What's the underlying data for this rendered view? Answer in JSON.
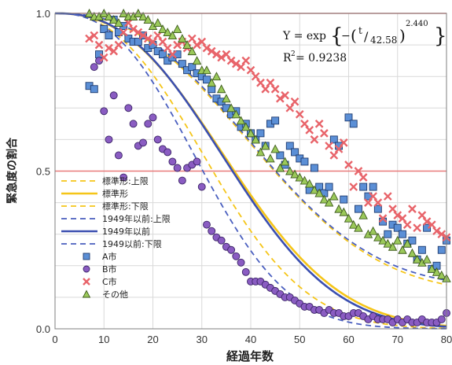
{
  "chart_data": {
    "type": "scatter",
    "xlabel": "経過年数",
    "ylabel": "緊急度の割合",
    "xlim": [
      0,
      80
    ],
    "ylim": [
      0,
      1.0
    ],
    "x_ticks": [
      "0",
      "10",
      "20",
      "30",
      "40",
      "50",
      "60",
      "70",
      "80"
    ],
    "y_ticks": [
      "0.0",
      "0.5",
      "1.0"
    ],
    "grid": true,
    "legend_position": "left-middle",
    "reference_lines": [
      {
        "y": 1.0,
        "color": "#e87a7a"
      },
      {
        "y": 0.5,
        "color": "#e87a7a"
      }
    ],
    "annotation": {
      "formula_prefix": "Y = exp",
      "formula_neg": "−",
      "formula_t": "t",
      "formula_div": "42.58",
      "formula_exp": "2.440",
      "r2_label": "R",
      "r2_sup": "2",
      "r2_value": " = 0.9238"
    },
    "curves": [
      {
        "name": "標準形:上限",
        "eta": 48.5,
        "m": 2.44,
        "tail": 0.11,
        "color": "#f5c518",
        "dash": true,
        "width": 1.8
      },
      {
        "name": "標準形",
        "eta": 42.58,
        "m": 2.44,
        "tail": 0.0,
        "color": "#f5c518",
        "dash": false,
        "width": 2.6
      },
      {
        "name": "標準形:下限",
        "eta": 37.5,
        "m": 2.44,
        "tail": 0.0,
        "color": "#f5c518",
        "dash": true,
        "width": 1.8
      },
      {
        "name": "1949年以前:上限",
        "eta": 48.0,
        "m": 2.5,
        "tail": 0.13,
        "color": "#4a5fbf",
        "dash": true,
        "width": 1.8
      },
      {
        "name": "1949年以前",
        "eta": 42.0,
        "m": 2.5,
        "tail": 0.0,
        "color": "#3b4fb0",
        "dash": false,
        "width": 2.6
      },
      {
        "name": "1949以前:下限",
        "eta": 35.0,
        "m": 2.5,
        "tail": 0.0,
        "color": "#4a5fbf",
        "dash": true,
        "width": 1.8
      }
    ],
    "series": [
      {
        "name": "A市",
        "marker": "square",
        "color": "#5b8fd6",
        "points": [
          [
            7,
            0.77
          ],
          [
            8,
            0.76
          ],
          [
            9,
            0.87
          ],
          [
            10,
            0.95
          ],
          [
            11,
            0.93
          ],
          [
            12,
            0.98
          ],
          [
            13,
            0.94
          ],
          [
            14,
            0.96
          ],
          [
            15,
            0.92
          ],
          [
            16,
            0.91
          ],
          [
            17,
            0.91
          ],
          [
            18,
            0.93
          ],
          [
            19,
            0.89
          ],
          [
            20,
            0.9
          ],
          [
            21,
            0.88
          ],
          [
            22,
            0.87
          ],
          [
            23,
            0.85
          ],
          [
            24,
            0.86
          ],
          [
            25,
            0.87
          ],
          [
            26,
            0.84
          ],
          [
            27,
            0.82
          ],
          [
            28,
            0.83
          ],
          [
            29,
            0.81
          ],
          [
            30,
            0.8
          ],
          [
            31,
            0.79
          ],
          [
            32,
            0.76
          ],
          [
            33,
            0.73
          ],
          [
            34,
            0.72
          ],
          [
            35,
            0.7
          ],
          [
            36,
            0.68
          ],
          [
            37,
            0.69
          ],
          [
            38,
            0.64
          ],
          [
            39,
            0.65
          ],
          [
            40,
            0.62
          ],
          [
            41,
            0.6
          ],
          [
            42,
            0.62
          ],
          [
            43,
            0.58
          ],
          [
            44,
            0.65
          ],
          [
            45,
            0.66
          ],
          [
            46,
            0.55
          ],
          [
            47,
            0.52
          ],
          [
            48,
            0.58
          ],
          [
            49,
            0.56
          ],
          [
            50,
            0.54
          ],
          [
            51,
            0.53
          ],
          [
            52,
            0.44
          ],
          [
            53,
            0.51
          ],
          [
            54,
            0.45
          ],
          [
            55,
            0.43
          ],
          [
            56,
            0.45
          ],
          [
            57,
            0.6
          ],
          [
            58,
            0.58
          ],
          [
            59,
            0.41
          ],
          [
            60,
            0.67
          ],
          [
            61,
            0.65
          ],
          [
            62,
            0.38
          ],
          [
            63,
            0.45
          ],
          [
            64,
            0.42
          ],
          [
            65,
            0.45
          ],
          [
            66,
            0.38
          ],
          [
            67,
            0.34
          ],
          [
            68,
            0.3
          ],
          [
            69,
            0.33
          ],
          [
            70,
            0.32
          ],
          [
            71,
            0.3
          ],
          [
            72,
            0.27
          ],
          [
            73,
            0.28
          ],
          [
            74,
            0.22
          ],
          [
            75,
            0.25
          ],
          [
            76,
            0.32
          ],
          [
            77,
            0.19
          ],
          [
            78,
            0.2
          ],
          [
            79,
            0.25
          ],
          [
            80,
            0.28
          ]
        ]
      },
      {
        "name": "B市",
        "marker": "circle",
        "color": "#8a5cc2",
        "points": [
          [
            8,
            0.83
          ],
          [
            9,
            0.85
          ],
          [
            10,
            0.69
          ],
          [
            11,
            0.6
          ],
          [
            12,
            0.74
          ],
          [
            13,
            0.55
          ],
          [
            14,
            0.48
          ],
          [
            15,
            0.7
          ],
          [
            16,
            0.65
          ],
          [
            17,
            0.58
          ],
          [
            18,
            0.59
          ],
          [
            19,
            0.65
          ],
          [
            20,
            0.67
          ],
          [
            21,
            0.6
          ],
          [
            22,
            0.57
          ],
          [
            23,
            0.56
          ],
          [
            24,
            0.53
          ],
          [
            25,
            0.51
          ],
          [
            26,
            0.47
          ],
          [
            27,
            0.51
          ],
          [
            28,
            0.52
          ],
          [
            29,
            0.53
          ],
          [
            30,
            0.45
          ],
          [
            31,
            0.33
          ],
          [
            32,
            0.31
          ],
          [
            33,
            0.29
          ],
          [
            34,
            0.28
          ],
          [
            35,
            0.26
          ],
          [
            36,
            0.25
          ],
          [
            37,
            0.23
          ],
          [
            38,
            0.21
          ],
          [
            39,
            0.18
          ],
          [
            40,
            0.15
          ],
          [
            41,
            0.15
          ],
          [
            42,
            0.15
          ],
          [
            43,
            0.14
          ],
          [
            44,
            0.13
          ],
          [
            45,
            0.12
          ],
          [
            46,
            0.11
          ],
          [
            47,
            0.1
          ],
          [
            48,
            0.1
          ],
          [
            49,
            0.09
          ],
          [
            50,
            0.08
          ],
          [
            51,
            0.07
          ],
          [
            52,
            0.07
          ],
          [
            53,
            0.06
          ],
          [
            54,
            0.06
          ],
          [
            55,
            0.05
          ],
          [
            56,
            0.06
          ],
          [
            57,
            0.05
          ],
          [
            58,
            0.05
          ],
          [
            59,
            0.04
          ],
          [
            60,
            0.04
          ],
          [
            61,
            0.05
          ],
          [
            62,
            0.05
          ],
          [
            63,
            0.04
          ],
          [
            64,
            0.03
          ],
          [
            65,
            0.04
          ],
          [
            66,
            0.03
          ],
          [
            67,
            0.03
          ],
          [
            68,
            0.03
          ],
          [
            69,
            0.02
          ],
          [
            70,
            0.03
          ],
          [
            71,
            0.02
          ],
          [
            72,
            0.03
          ],
          [
            73,
            0.02
          ],
          [
            74,
            0.02
          ],
          [
            75,
            0.03
          ],
          [
            76,
            0.02
          ],
          [
            77,
            0.02
          ],
          [
            78,
            0.02
          ],
          [
            79,
            0.03
          ],
          [
            80,
            0.05
          ]
        ]
      },
      {
        "name": "C市",
        "marker": "x",
        "color": "#e8646a",
        "points": [
          [
            7,
            0.92
          ],
          [
            8,
            0.93
          ],
          [
            9,
            0.9
          ],
          [
            10,
            0.86
          ],
          [
            11,
            0.89
          ],
          [
            12,
            0.88
          ],
          [
            13,
            0.9
          ],
          [
            14,
            0.94
          ],
          [
            15,
            0.97
          ],
          [
            16,
            0.95
          ],
          [
            17,
            0.94
          ],
          [
            18,
            0.93
          ],
          [
            19,
            0.92
          ],
          [
            20,
            0.91
          ],
          [
            21,
            0.93
          ],
          [
            22,
            0.91
          ],
          [
            23,
            0.89
          ],
          [
            24,
            0.87
          ],
          [
            25,
            0.9
          ],
          [
            26,
            0.91
          ],
          [
            27,
            0.89
          ],
          [
            28,
            0.92
          ],
          [
            29,
            0.9
          ],
          [
            30,
            0.91
          ],
          [
            31,
            0.89
          ],
          [
            32,
            0.88
          ],
          [
            33,
            0.87
          ],
          [
            34,
            0.86
          ],
          [
            35,
            0.87
          ],
          [
            36,
            0.85
          ],
          [
            37,
            0.84
          ],
          [
            38,
            0.83
          ],
          [
            39,
            0.85
          ],
          [
            40,
            0.82
          ],
          [
            41,
            0.8
          ],
          [
            42,
            0.78
          ],
          [
            43,
            0.76
          ],
          [
            44,
            0.78
          ],
          [
            45,
            0.76
          ],
          [
            46,
            0.73
          ],
          [
            47,
            0.74
          ],
          [
            48,
            0.7
          ],
          [
            49,
            0.72
          ],
          [
            50,
            0.68
          ],
          [
            51,
            0.65
          ],
          [
            52,
            0.63
          ],
          [
            53,
            0.6
          ],
          [
            54,
            0.65
          ],
          [
            55,
            0.62
          ],
          [
            56,
            0.58
          ],
          [
            57,
            0.55
          ],
          [
            58,
            0.57
          ],
          [
            59,
            0.59
          ],
          [
            60,
            0.52
          ],
          [
            61,
            0.45
          ],
          [
            62,
            0.5
          ],
          [
            63,
            0.48
          ],
          [
            64,
            0.4
          ],
          [
            65,
            0.42
          ],
          [
            66,
            0.4
          ],
          [
            67,
            0.35
          ],
          [
            68,
            0.42
          ],
          [
            69,
            0.38
          ],
          [
            70,
            0.36
          ],
          [
            71,
            0.35
          ],
          [
            72,
            0.33
          ],
          [
            73,
            0.38
          ],
          [
            74,
            0.32
          ],
          [
            75,
            0.36
          ],
          [
            76,
            0.34
          ],
          [
            77,
            0.33
          ],
          [
            78,
            0.31
          ],
          [
            79,
            0.3
          ],
          [
            80,
            0.29
          ]
        ]
      },
      {
        "name": "その他",
        "marker": "triangle",
        "color": "#9bc95a",
        "points": [
          [
            7,
            1.0
          ],
          [
            8,
            0.99
          ],
          [
            9,
            0.99
          ],
          [
            10,
            1.0
          ],
          [
            11,
            0.99
          ],
          [
            12,
            0.98
          ],
          [
            13,
            0.97
          ],
          [
            14,
            1.0
          ],
          [
            15,
            0.99
          ],
          [
            16,
            0.99
          ],
          [
            17,
            1.0
          ],
          [
            18,
            0.99
          ],
          [
            19,
            0.98
          ],
          [
            20,
            0.96
          ],
          [
            21,
            0.97
          ],
          [
            22,
            0.95
          ],
          [
            23,
            0.94
          ],
          [
            24,
            0.93
          ],
          [
            25,
            0.95
          ],
          [
            26,
            0.92
          ],
          [
            27,
            0.9
          ],
          [
            28,
            0.88
          ],
          [
            29,
            0.85
          ],
          [
            30,
            0.82
          ],
          [
            31,
            0.82
          ],
          [
            32,
            0.78
          ],
          [
            33,
            0.8
          ],
          [
            34,
            0.76
          ],
          [
            35,
            0.73
          ],
          [
            36,
            0.7
          ],
          [
            37,
            0.68
          ],
          [
            38,
            0.66
          ],
          [
            39,
            0.64
          ],
          [
            40,
            0.62
          ],
          [
            41,
            0.6
          ],
          [
            42,
            0.56
          ],
          [
            43,
            0.58
          ],
          [
            44,
            0.54
          ],
          [
            45,
            0.57
          ],
          [
            46,
            0.51
          ],
          [
            47,
            0.53
          ],
          [
            48,
            0.5
          ],
          [
            49,
            0.49
          ],
          [
            50,
            0.48
          ],
          [
            51,
            0.47
          ],
          [
            52,
            0.46
          ],
          [
            53,
            0.44
          ],
          [
            54,
            0.43
          ],
          [
            55,
            0.41
          ],
          [
            56,
            0.4
          ],
          [
            57,
            0.42
          ],
          [
            58,
            0.38
          ],
          [
            59,
            0.37
          ],
          [
            60,
            0.35
          ],
          [
            61,
            0.33
          ],
          [
            62,
            0.32
          ],
          [
            63,
            0.36
          ],
          [
            64,
            0.3
          ],
          [
            65,
            0.31
          ],
          [
            66,
            0.29
          ],
          [
            67,
            0.28
          ],
          [
            68,
            0.27
          ],
          [
            69,
            0.26
          ],
          [
            70,
            0.28
          ],
          [
            71,
            0.25
          ],
          [
            72,
            0.27
          ],
          [
            73,
            0.24
          ],
          [
            74,
            0.22
          ],
          [
            75,
            0.21
          ],
          [
            76,
            0.22
          ],
          [
            77,
            0.19
          ],
          [
            78,
            0.18
          ],
          [
            79,
            0.17
          ],
          [
            80,
            0.16
          ]
        ]
      }
    ]
  }
}
